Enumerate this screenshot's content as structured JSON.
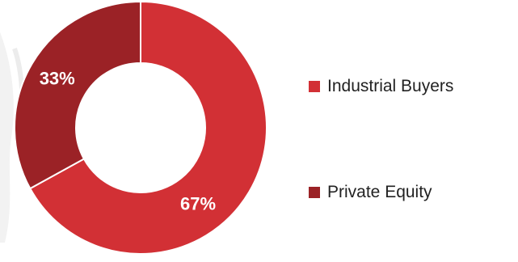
{
  "chart_data": {
    "type": "pie",
    "style": "donut",
    "slices": [
      {
        "name": "Industrial Buyers",
        "value": 67,
        "label": "67%",
        "color": "#d23035"
      },
      {
        "name": "Private Equity",
        "value": 33,
        "label": "33%",
        "color": "#9b2226"
      }
    ],
    "legend_position": "right"
  },
  "legend": {
    "items": [
      {
        "label": "Industrial Buyers",
        "color": "#d23035"
      },
      {
        "label": "Private Equity",
        "color": "#9b2226"
      }
    ]
  }
}
